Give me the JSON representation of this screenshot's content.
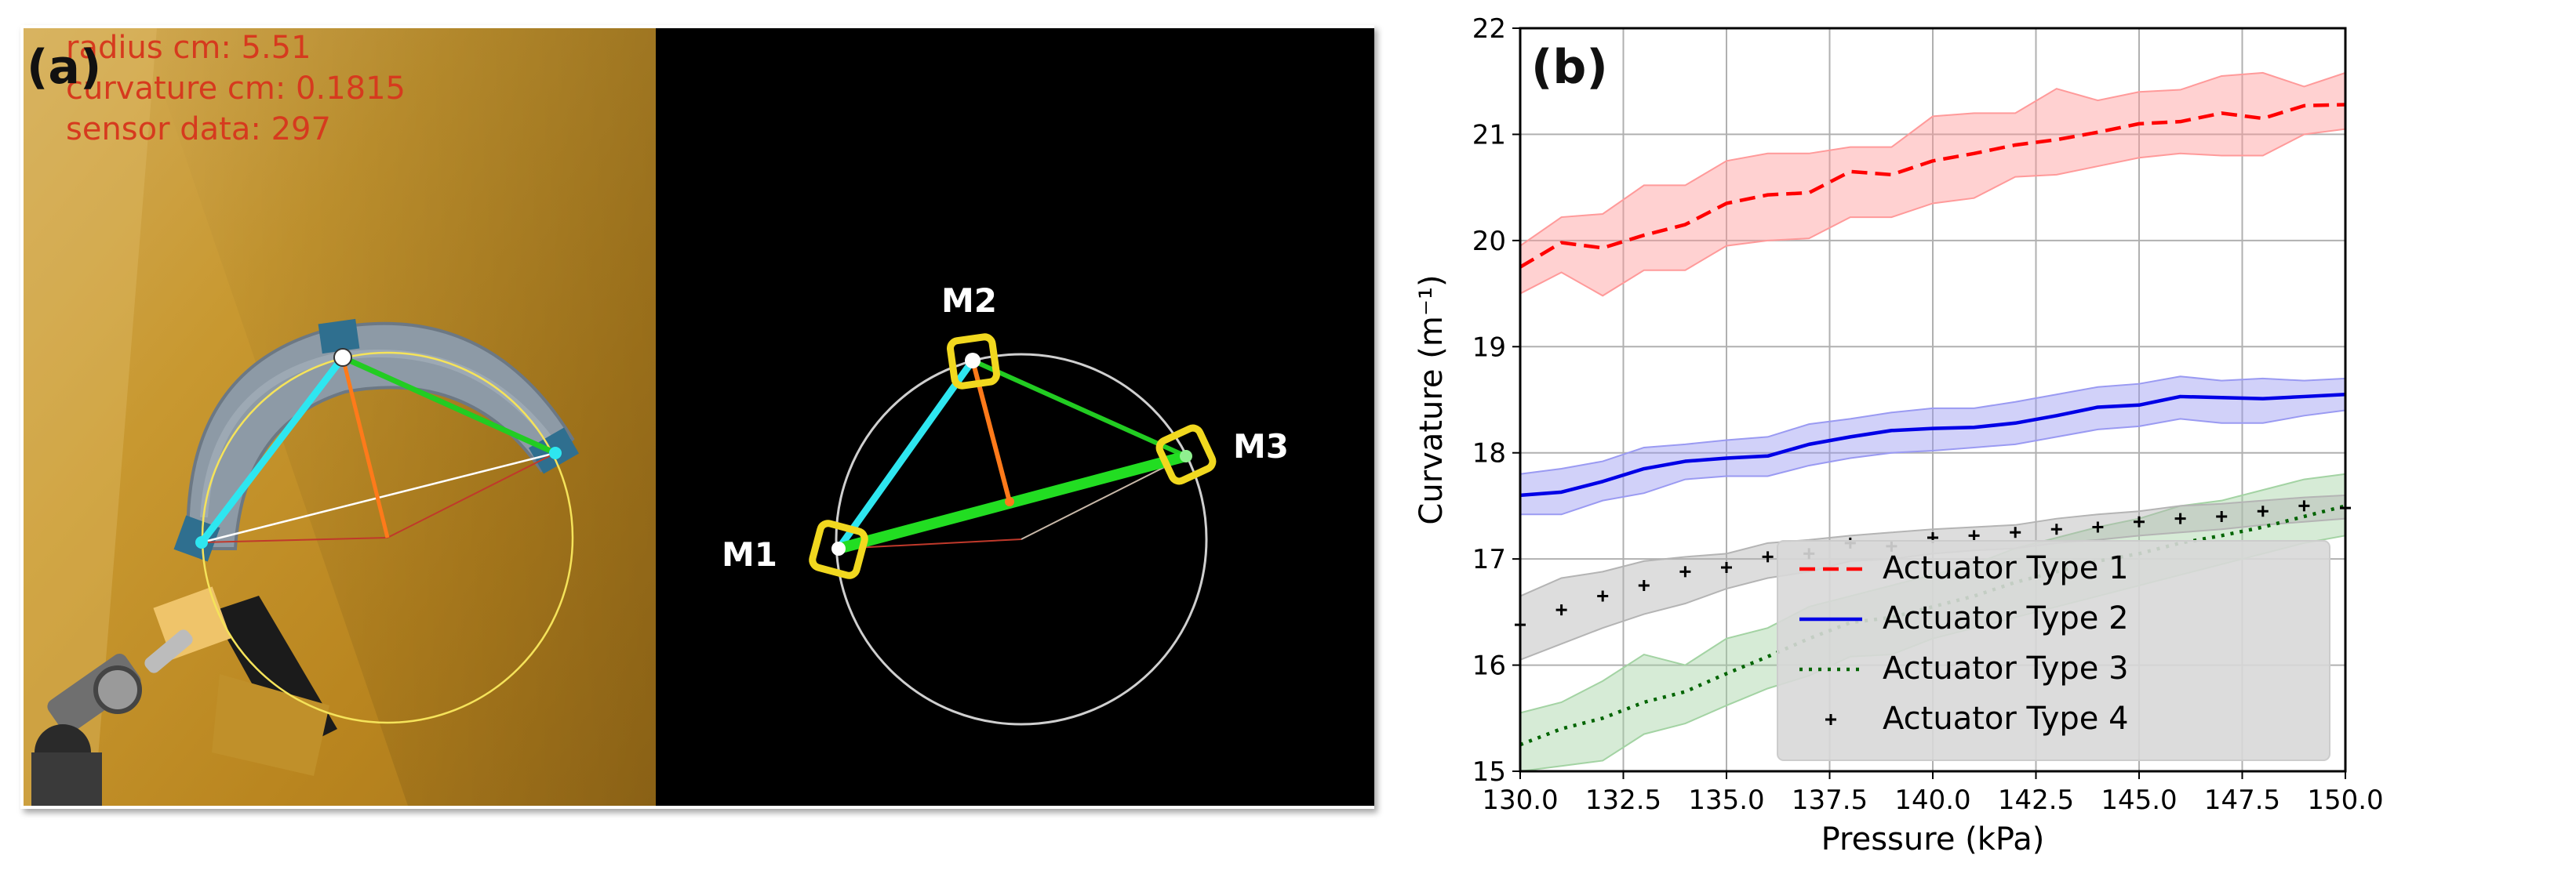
{
  "panel_a": {
    "label": "(a)",
    "overlay_text": [
      "radius cm: 5.51",
      "curvature cm: 0.1815",
      "sensor data: 297"
    ],
    "markers": [
      "M1",
      "M2",
      "M3"
    ]
  },
  "panel_b_label": "(b)",
  "chart_data": {
    "type": "line",
    "title": "",
    "xlabel": "Pressure (kPa)",
    "ylabel": "Curvature (m⁻¹)",
    "xlim": [
      130,
      150
    ],
    "ylim": [
      15,
      22
    ],
    "x_ticks": [
      "130.0",
      "132.5",
      "135.0",
      "137.5",
      "140.0",
      "142.5",
      "145.0",
      "147.5",
      "150.0"
    ],
    "y_ticks": [
      "15",
      "16",
      "17",
      "18",
      "19",
      "20",
      "21",
      "22"
    ],
    "grid": true,
    "legend_position": "bottom-right",
    "x": [
      130,
      131,
      132,
      133,
      134,
      135,
      136,
      137,
      138,
      139,
      140,
      141,
      142,
      143,
      144,
      145,
      146,
      147,
      148,
      149,
      150
    ],
    "series": [
      {
        "name": "Actuator Type 1",
        "style": "dashed",
        "color": "#ff0000",
        "band_color": "#ff9a9a",
        "values": [
          19.75,
          19.98,
          19.93,
          20.05,
          20.15,
          20.35,
          20.43,
          20.45,
          20.65,
          20.62,
          20.75,
          20.82,
          20.9,
          20.95,
          21.02,
          21.1,
          21.12,
          21.2,
          21.15,
          21.27,
          21.28
        ],
        "lower": [
          19.5,
          19.7,
          19.48,
          19.72,
          19.72,
          19.95,
          20.0,
          20.02,
          20.22,
          20.22,
          20.35,
          20.4,
          20.6,
          20.62,
          20.7,
          20.78,
          20.82,
          20.8,
          20.8,
          21.0,
          21.05
        ],
        "upper": [
          19.95,
          20.22,
          20.25,
          20.52,
          20.52,
          20.75,
          20.82,
          20.82,
          20.88,
          20.88,
          21.17,
          21.2,
          21.2,
          21.43,
          21.32,
          21.4,
          21.42,
          21.55,
          21.58,
          21.45,
          21.58
        ]
      },
      {
        "name": "Actuator Type 2",
        "style": "solid",
        "color": "#0000e6",
        "band_color": "#9a9af2",
        "values": [
          17.6,
          17.63,
          17.73,
          17.85,
          17.92,
          17.95,
          17.97,
          18.08,
          18.15,
          18.21,
          18.23,
          18.24,
          18.28,
          18.35,
          18.43,
          18.45,
          18.53,
          18.52,
          18.51,
          18.53,
          18.55
        ],
        "lower": [
          17.42,
          17.42,
          17.55,
          17.62,
          17.75,
          17.78,
          17.78,
          17.88,
          17.95,
          18.0,
          18.02,
          18.05,
          18.08,
          18.15,
          18.22,
          18.25,
          18.32,
          18.28,
          18.28,
          18.35,
          18.4
        ],
        "upper": [
          17.8,
          17.85,
          17.92,
          18.05,
          18.08,
          18.12,
          18.15,
          18.27,
          18.32,
          18.38,
          18.42,
          18.42,
          18.48,
          18.55,
          18.62,
          18.65,
          18.72,
          18.68,
          18.7,
          18.68,
          18.7
        ]
      },
      {
        "name": "Actuator Type 3",
        "style": "dotted",
        "color": "#006400",
        "band_color": "#a3d3a3",
        "values": [
          15.25,
          15.4,
          15.5,
          15.65,
          15.75,
          15.92,
          16.08,
          16.25,
          16.4,
          16.45,
          16.55,
          16.65,
          16.78,
          16.88,
          16.98,
          17.05,
          17.15,
          17.22,
          17.3,
          17.4,
          17.5
        ],
        "lower": [
          15.0,
          15.05,
          15.1,
          15.35,
          15.45,
          15.62,
          15.78,
          15.9,
          16.08,
          16.1,
          16.25,
          16.35,
          16.45,
          16.55,
          16.65,
          16.75,
          16.85,
          16.95,
          17.05,
          17.15,
          17.22
        ],
        "upper": [
          15.55,
          15.65,
          15.85,
          16.1,
          16.0,
          16.25,
          16.35,
          16.55,
          16.65,
          16.75,
          16.85,
          16.95,
          17.1,
          17.2,
          17.3,
          17.38,
          17.5,
          17.55,
          17.65,
          17.75,
          17.8
        ]
      },
      {
        "name": "Actuator Type 4",
        "style": "plus-markers",
        "color": "#000000",
        "band_color": "#b4b4b4",
        "values": [
          16.38,
          16.52,
          16.65,
          16.75,
          16.88,
          16.92,
          17.02,
          17.05,
          17.15,
          17.12,
          17.2,
          17.22,
          17.25,
          17.28,
          17.3,
          17.35,
          17.38,
          17.4,
          17.45,
          17.5,
          17.48
        ],
        "lower": [
          16.05,
          16.2,
          16.35,
          16.48,
          16.58,
          16.72,
          16.82,
          16.88,
          16.98,
          17.0,
          17.05,
          17.08,
          17.1,
          17.15,
          17.18,
          17.22,
          17.25,
          17.28,
          17.32,
          17.35,
          17.38
        ],
        "upper": [
          16.65,
          16.82,
          16.88,
          16.98,
          17.02,
          17.05,
          17.15,
          17.18,
          17.22,
          17.25,
          17.28,
          17.3,
          17.32,
          17.38,
          17.42,
          17.45,
          17.5,
          17.52,
          17.55,
          17.58,
          17.6
        ]
      }
    ]
  }
}
